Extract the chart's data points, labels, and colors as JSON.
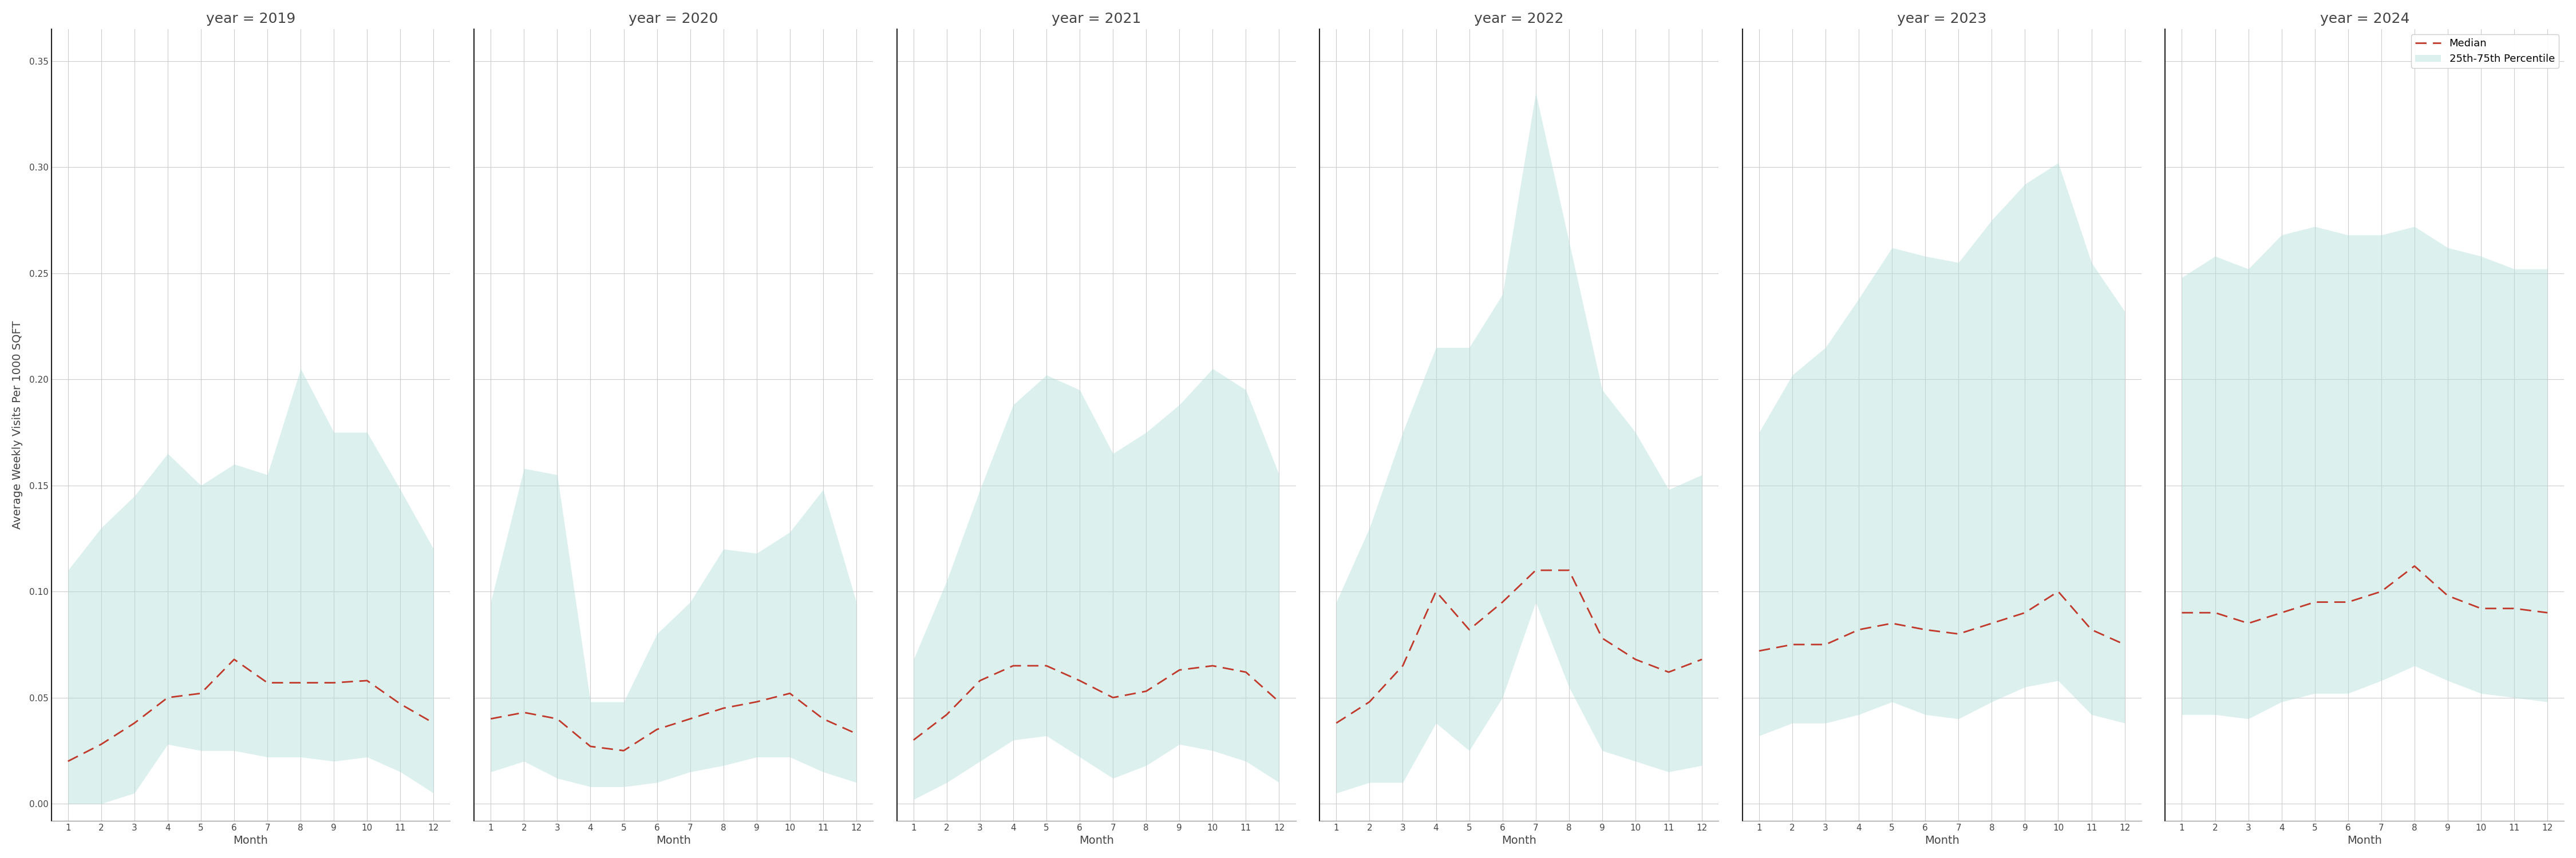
{
  "years": [
    2019,
    2020,
    2021,
    2022,
    2023,
    2024
  ],
  "months": [
    1,
    2,
    3,
    4,
    5,
    6,
    7,
    8,
    9,
    10,
    11,
    12
  ],
  "median": {
    "2019": [
      0.02,
      0.028,
      0.038,
      0.05,
      0.052,
      0.068,
      0.057,
      0.057,
      0.057,
      0.058,
      0.047,
      0.038
    ],
    "2020": [
      0.04,
      0.043,
      0.04,
      0.027,
      0.025,
      0.035,
      0.04,
      0.045,
      0.048,
      0.052,
      0.04,
      0.033
    ],
    "2021": [
      0.03,
      0.042,
      0.058,
      0.065,
      0.065,
      0.058,
      0.05,
      0.053,
      0.063,
      0.065,
      0.062,
      0.048
    ],
    "2022": [
      0.038,
      0.048,
      0.065,
      0.1,
      0.082,
      0.095,
      0.11,
      0.11,
      0.078,
      0.068,
      0.062,
      0.068
    ],
    "2023": [
      0.072,
      0.075,
      0.075,
      0.082,
      0.085,
      0.082,
      0.08,
      0.085,
      0.09,
      0.1,
      0.082,
      0.075
    ],
    "2024": [
      0.09,
      0.09,
      0.085,
      0.09,
      0.095,
      0.095,
      0.1,
      0.112,
      0.098,
      0.092,
      0.092,
      0.09
    ]
  },
  "p25": {
    "2019": [
      0.0,
      0.0,
      0.005,
      0.028,
      0.025,
      0.025,
      0.022,
      0.022,
      0.02,
      0.022,
      0.015,
      0.005
    ],
    "2020": [
      0.015,
      0.02,
      0.012,
      0.008,
      0.008,
      0.01,
      0.015,
      0.018,
      0.022,
      0.022,
      0.015,
      0.01
    ],
    "2021": [
      0.002,
      0.01,
      0.02,
      0.03,
      0.032,
      0.022,
      0.012,
      0.018,
      0.028,
      0.025,
      0.02,
      0.01
    ],
    "2022": [
      0.005,
      0.01,
      0.01,
      0.038,
      0.025,
      0.05,
      0.095,
      0.055,
      0.025,
      0.02,
      0.015,
      0.018
    ],
    "2023": [
      0.032,
      0.038,
      0.038,
      0.042,
      0.048,
      0.042,
      0.04,
      0.048,
      0.055,
      0.058,
      0.042,
      0.038
    ],
    "2024": [
      0.042,
      0.042,
      0.04,
      0.048,
      0.052,
      0.052,
      0.058,
      0.065,
      0.058,
      0.052,
      0.05,
      0.048
    ]
  },
  "p75": {
    "2019": [
      0.11,
      0.13,
      0.145,
      0.165,
      0.15,
      0.16,
      0.155,
      0.205,
      0.175,
      0.175,
      0.148,
      0.12
    ],
    "2020": [
      0.095,
      0.158,
      0.155,
      0.048,
      0.048,
      0.08,
      0.095,
      0.12,
      0.118,
      0.128,
      0.148,
      0.095
    ],
    "2021": [
      0.068,
      0.105,
      0.148,
      0.188,
      0.202,
      0.195,
      0.165,
      0.175,
      0.188,
      0.205,
      0.195,
      0.155
    ],
    "2022": [
      0.095,
      0.13,
      0.175,
      0.215,
      0.215,
      0.24,
      0.335,
      0.265,
      0.195,
      0.175,
      0.148,
      0.155
    ],
    "2023": [
      0.175,
      0.202,
      0.215,
      0.238,
      0.262,
      0.258,
      0.255,
      0.275,
      0.292,
      0.302,
      0.255,
      0.232
    ],
    "2024": [
      0.248,
      0.258,
      0.252,
      0.268,
      0.272,
      0.268,
      0.268,
      0.272,
      0.262,
      0.258,
      0.252,
      0.252
    ]
  },
  "fill_color": "#b2dfdb",
  "fill_alpha": 0.45,
  "line_color": "#c0392b",
  "ylabel": "Average Weekly Visits Per 1000 SQFT",
  "xlabel": "Month",
  "ylim": [
    -0.008,
    0.365
  ],
  "yticks": [
    0.0,
    0.05,
    0.1,
    0.15,
    0.2,
    0.25,
    0.3,
    0.35
  ],
  "xticks": [
    1,
    2,
    3,
    4,
    5,
    6,
    7,
    8,
    9,
    10,
    11,
    12
  ],
  "legend_median_label": "Median",
  "legend_fill_label": "25th-75th Percentile",
  "bg_color": "#ffffff",
  "grid_color": "#cccccc"
}
